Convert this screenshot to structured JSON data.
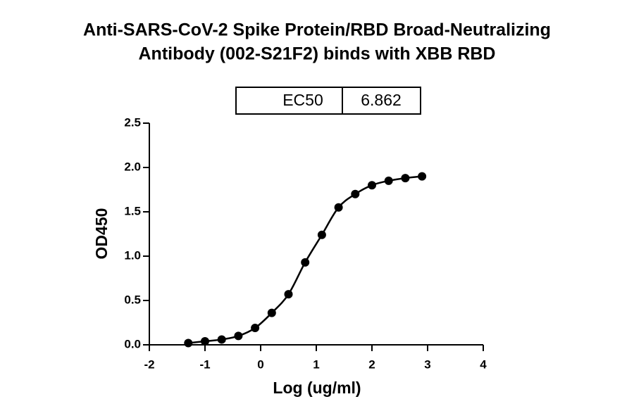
{
  "chart_data": {
    "type": "scatter",
    "title": [
      "Anti-SARS-CoV-2 Spike Protein/RBD Broad-Neutralizing",
      "Antibody (002-S21F2) binds with XBB RBD"
    ],
    "x_label": "Log (ug/ml)",
    "y_label": "OD450",
    "table": {
      "label": "EC50",
      "value": 6.862
    },
    "x": [
      -1.3,
      -1.0,
      -0.7,
      -0.4,
      -0.1,
      0.2,
      0.5,
      0.8,
      1.1,
      1.4,
      1.7,
      2.0,
      2.3,
      2.6,
      2.9
    ],
    "series": [
      {
        "color": "#000000",
        "values": [
          0.02,
          0.04,
          0.06,
          0.1,
          0.19,
          0.36,
          0.57,
          0.93,
          1.24,
          1.55,
          1.7,
          1.8,
          1.85,
          1.88,
          1.9
        ]
      }
    ],
    "xlim": [
      -2,
      4
    ],
    "xticks": [
      -2,
      -1,
      0,
      1,
      2,
      3,
      4
    ],
    "ylim": [
      0,
      2.5
    ],
    "yticks": [
      {
        "value": 0,
        "label": "0.0"
      },
      0.5,
      {
        "value": 1,
        "label": "1.0"
      },
      1.5,
      {
        "value": 2,
        "label": "2.0"
      },
      2.5
    ],
    "grid": false
  }
}
